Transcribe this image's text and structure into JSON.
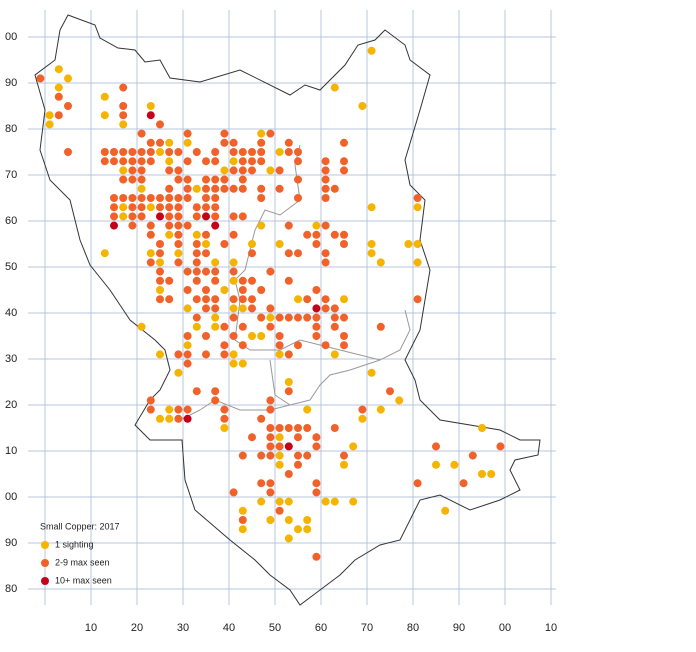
{
  "chart_data": {
    "type": "scatter",
    "legend_title": "Small Copper:  2017",
    "xlim": [
      0,
      110
    ],
    "ylim": [
      -20,
      100
    ],
    "grid": true,
    "xticks": [
      10,
      20,
      30,
      40,
      50,
      60,
      70,
      80,
      90,
      {
        "value": 100,
        "label": "00"
      },
      {
        "value": 110,
        "label": "10"
      }
    ],
    "yticks": [
      {
        "value": 100,
        "label": "00"
      },
      90,
      80,
      70,
      60,
      50,
      40,
      30,
      20,
      10,
      {
        "value": 0,
        "label": "00"
      },
      {
        "value": -10,
        "label": "90"
      },
      {
        "value": -20,
        "label": "80"
      }
    ],
    "series": [
      {
        "name": "1 sighting",
        "color": "#f4b400",
        "x": [
          3,
          3,
          5,
          1,
          1,
          13,
          13,
          17,
          23,
          71,
          69,
          63,
          27,
          31,
          47,
          25,
          51,
          27,
          41,
          17,
          39,
          49,
          21,
          33,
          17,
          23,
          71,
          81,
          17,
          47,
          59,
          27,
          33,
          35,
          45,
          51,
          71,
          79,
          81,
          13,
          23,
          29,
          71,
          25,
          37,
          41,
          73,
          81,
          41,
          25,
          39,
          55,
          65,
          31,
          41,
          43,
          37,
          49,
          21,
          33,
          37,
          45,
          47,
          31,
          25,
          41,
          51,
          63,
          41,
          43,
          29,
          71,
          53,
          77,
          27,
          57,
          73,
          25,
          27,
          69,
          39,
          95,
          51,
          67,
          51,
          51,
          65,
          85,
          89,
          95,
          97,
          47,
          51,
          53,
          61,
          63,
          67,
          43,
          87,
          49,
          53,
          57,
          43,
          55,
          57,
          53
        ],
        "y": [
          93,
          89,
          91,
          83,
          81,
          87,
          83,
          81,
          85,
          97,
          85,
          89,
          77,
          77,
          79,
          75,
          75,
          73,
          73,
          71,
          71,
          71,
          67,
          67,
          63,
          63,
          63,
          63,
          61,
          59,
          59,
          57,
          57,
          55,
          55,
          55,
          55,
          55,
          55,
          53,
          53,
          53,
          53,
          51,
          51,
          51,
          51,
          51,
          47,
          45,
          45,
          43,
          43,
          41,
          41,
          41,
          39,
          39,
          37,
          37,
          37,
          35,
          35,
          33,
          31,
          31,
          31,
          31,
          29,
          29,
          27,
          27,
          25,
          21,
          19,
          19,
          19,
          17,
          17,
          17,
          15,
          15,
          13,
          11,
          9,
          7,
          7,
          7,
          7,
          5,
          5,
          -1,
          -1,
          -1,
          -1,
          -1,
          -1,
          -3,
          -3,
          -5,
          -5,
          -5,
          -7,
          -7,
          -7,
          -9
        ]
      },
      {
        "name": "2-9 max seen",
        "color": "#f0622a",
        "x": [
          -1,
          3,
          5,
          3,
          5,
          17,
          17,
          17,
          25,
          21,
          31,
          39,
          49,
          23,
          25,
          39,
          41,
          47,
          53,
          65,
          13,
          15,
          17,
          19,
          21,
          23,
          27,
          29,
          33,
          37,
          41,
          43,
          45,
          47,
          53,
          55,
          13,
          15,
          17,
          19,
          21,
          23,
          31,
          35,
          37,
          43,
          45,
          47,
          55,
          61,
          65,
          19,
          21,
          27,
          29,
          41,
          43,
          45,
          51,
          61,
          65,
          17,
          19,
          21,
          29,
          31,
          35,
          37,
          39,
          43,
          55,
          61,
          27,
          31,
          35,
          37,
          39,
          41,
          43,
          47,
          51,
          61,
          63,
          15,
          17,
          19,
          21,
          23,
          25,
          27,
          29,
          31,
          35,
          37,
          47,
          55,
          61,
          81,
          15,
          19,
          21,
          25,
          27,
          29,
          33,
          35,
          37,
          15,
          19,
          21,
          27,
          29,
          33,
          37,
          41,
          43,
          19,
          23,
          27,
          29,
          31,
          53,
          61,
          23,
          29,
          35,
          41,
          57,
          59,
          63,
          65,
          25,
          29,
          33,
          39,
          59,
          65,
          25,
          33,
          35,
          45,
          53,
          55,
          61,
          23,
          29,
          33,
          61,
          25,
          31,
          33,
          35,
          37,
          41,
          49,
          25,
          27,
          33,
          37,
          43,
          45,
          53,
          31,
          35,
          43,
          47,
          59,
          25,
          27,
          33,
          35,
          37,
          41,
          43,
          45,
          57,
          61,
          81,
          35,
          37,
          45,
          49,
          61,
          63,
          33,
          41,
          47,
          51,
          53,
          55,
          57,
          59,
          63,
          65,
          39,
          43,
          49,
          59,
          63,
          73,
          31,
          35,
          41,
          51,
          59,
          65,
          39,
          43,
          51,
          55,
          61,
          65,
          29,
          31,
          35,
          39,
          53,
          31,
          33,
          37,
          53,
          75,
          23,
          37,
          49,
          23,
          29,
          31,
          39,
          49,
          69,
          29,
          39,
          47,
          49,
          51,
          53,
          55,
          57,
          63,
          45,
          49,
          55,
          59,
          49,
          51,
          59,
          85,
          99,
          43,
          47,
          49,
          55,
          57,
          65,
          93,
          55,
          53,
          47,
          49,
          59,
          81,
          91,
          41,
          49,
          59,
          51,
          43,
          59
        ],
        "y": [
          91,
          87,
          85,
          83,
          75,
          89,
          85,
          83,
          81,
          79,
          79,
          79,
          79,
          77,
          77,
          77,
          77,
          77,
          77,
          77,
          75,
          75,
          75,
          75,
          75,
          75,
          75,
          75,
          75,
          75,
          75,
          75,
          75,
          75,
          75,
          75,
          73,
          73,
          73,
          73,
          73,
          73,
          73,
          73,
          73,
          73,
          73,
          73,
          73,
          73,
          73,
          71,
          71,
          71,
          71,
          71,
          71,
          71,
          71,
          71,
          71,
          69,
          69,
          69,
          69,
          69,
          69,
          69,
          69,
          69,
          69,
          69,
          67,
          67,
          67,
          67,
          67,
          67,
          67,
          67,
          67,
          67,
          67,
          65,
          65,
          65,
          65,
          65,
          65,
          65,
          65,
          65,
          65,
          65,
          65,
          65,
          65,
          65,
          63,
          63,
          63,
          63,
          63,
          63,
          63,
          63,
          63,
          61,
          61,
          61,
          61,
          61,
          61,
          61,
          61,
          61,
          59,
          59,
          59,
          59,
          59,
          59,
          59,
          57,
          57,
          57,
          57,
          57,
          57,
          57,
          57,
          55,
          55,
          55,
          55,
          55,
          55,
          53,
          53,
          53,
          53,
          53,
          53,
          53,
          51,
          51,
          51,
          51,
          49,
          49,
          49,
          49,
          49,
          49,
          49,
          47,
          47,
          47,
          47,
          47,
          47,
          47,
          45,
          45,
          45,
          45,
          45,
          43,
          43,
          43,
          43,
          43,
          43,
          43,
          43,
          43,
          43,
          43,
          41,
          41,
          41,
          41,
          41,
          41,
          39,
          39,
          39,
          39,
          39,
          39,
          39,
          39,
          39,
          39,
          37,
          37,
          37,
          37,
          37,
          37,
          35,
          35,
          35,
          35,
          35,
          35,
          33,
          33,
          33,
          33,
          33,
          33,
          31,
          31,
          31,
          31,
          31,
          29,
          23,
          23,
          23,
          23,
          21,
          21,
          21,
          19,
          19,
          19,
          19,
          19,
          19,
          17,
          17,
          17,
          15,
          15,
          15,
          15,
          15,
          15,
          13,
          13,
          13,
          13,
          11,
          11,
          11,
          11,
          11,
          9,
          9,
          9,
          9,
          9,
          9,
          9,
          7,
          5,
          3,
          3,
          3,
          3,
          3,
          1,
          1,
          1,
          -3,
          -5,
          -13
        ]
      },
      {
        "name": "10+ max seen",
        "color": "#c4001a",
        "x": [
          23,
          25,
          35,
          15,
          37,
          59,
          31,
          53
        ],
        "y": [
          83,
          61,
          61,
          59,
          59,
          41,
          17,
          11
        ]
      }
    ]
  }
}
